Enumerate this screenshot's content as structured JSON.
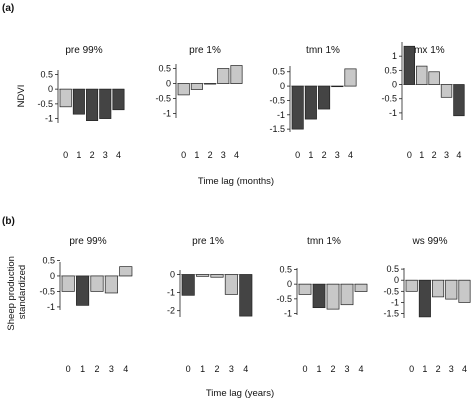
{
  "chart_data": [
    {
      "panel": "(a)",
      "type": "bar",
      "xlabel": "Time lag (months)",
      "ylabel": "NDVI",
      "charts": [
        {
          "title": "pre 99%",
          "categories": [
            "0",
            "1",
            "2",
            "3",
            "4"
          ],
          "ylim": [
            -1.15,
            0.65
          ],
          "yticks": [
            "0.5",
            "0",
            "-0.5",
            "-1"
          ],
          "ytick_values": [
            0.5,
            0,
            -0.5,
            -1
          ],
          "values": [
            -0.6,
            -0.85,
            -1.07,
            -1.0,
            -0.7
          ],
          "fills": [
            "#c8c8c8",
            "#444444",
            "#444444",
            "#444444",
            "#444444"
          ]
        },
        {
          "title": "pre 1%",
          "categories": [
            "0",
            "1",
            "2",
            "3",
            "4"
          ],
          "ylim": [
            -1.15,
            0.65
          ],
          "yticks": [
            "0.5",
            "0",
            "-0.5",
            "-1"
          ],
          "ytick_values": [
            0.5,
            0,
            -0.5,
            -1
          ],
          "values": [
            -0.38,
            -0.2,
            0.0,
            0.5,
            0.6
          ],
          "fills": [
            "#c8c8c8",
            "#c8c8c8",
            "#444444",
            "#c8c8c8",
            "#c8c8c8"
          ]
        },
        {
          "title": "tmn 1%",
          "categories": [
            "0",
            "1",
            "2",
            "3",
            "4"
          ],
          "ylim": [
            -1.6,
            0.7
          ],
          "yticks": [
            "0.5",
            "0",
            "-0.5",
            "-1",
            "-1.5"
          ],
          "ytick_values": [
            0.5,
            0,
            -0.5,
            -1,
            -1.5
          ],
          "values": [
            -1.5,
            -1.15,
            -0.8,
            0.0,
            0.6
          ],
          "fills": [
            "#444444",
            "#444444",
            "#444444",
            "#444444",
            "#c8c8c8"
          ]
        },
        {
          "title": "tmx 1%",
          "categories": [
            "0",
            "1",
            "2",
            "3",
            "4"
          ],
          "ylim": [
            -1.25,
            1.5
          ],
          "yticks": [
            "1",
            "0.5",
            "0",
            "-0.5",
            "-1"
          ],
          "ytick_values": [
            1,
            0.5,
            0,
            -0.5,
            -1
          ],
          "values": [
            1.35,
            0.65,
            0.45,
            -0.45,
            -1.1
          ],
          "fills": [
            "#444444",
            "#c8c8c8",
            "#c8c8c8",
            "#c8c8c8",
            "#444444"
          ]
        }
      ]
    },
    {
      "panel": "(b)",
      "type": "bar",
      "xlabel": "Time lag (years)",
      "ylabel": "Sheep production standardized",
      "charts": [
        {
          "title": "pre 99%",
          "categories": [
            "0",
            "1",
            "2",
            "3",
            "4"
          ],
          "ylim": [
            -1.1,
            0.45
          ],
          "yticks": [
            "0.5",
            "0",
            "-0.5",
            "-1"
          ],
          "ytick_values": [
            0.5,
            0,
            -0.5,
            -1
          ],
          "values": [
            -0.5,
            -0.95,
            -0.5,
            -0.55,
            0.3
          ],
          "fills": [
            "#c8c8c8",
            "#444444",
            "#c8c8c8",
            "#c8c8c8",
            "#c8c8c8"
          ]
        },
        {
          "title": "pre 1%",
          "categories": [
            "0",
            "1",
            "2",
            "3",
            "4"
          ],
          "ylim": [
            -2.35,
            0.25
          ],
          "yticks": [
            "0",
            "-1",
            "-2"
          ],
          "ytick_values": [
            0,
            -1,
            -2
          ],
          "values": [
            -1.15,
            -0.1,
            -0.15,
            -1.1,
            -2.3
          ],
          "fills": [
            "#444444",
            "#c8c8c8",
            "#c8c8c8",
            "#c8c8c8",
            "#444444"
          ]
        },
        {
          "title": "tmn 1%",
          "categories": [
            "0",
            "1",
            "2",
            "3",
            "4"
          ],
          "ylim": [
            -1.05,
            0.55
          ],
          "yticks": [
            "0.5",
            "0",
            "-0.5",
            "-1"
          ],
          "ytick_values": [
            0.5,
            0,
            -0.5,
            -1
          ],
          "values": [
            -0.35,
            -0.8,
            -0.85,
            -0.7,
            -0.25
          ],
          "fills": [
            "#c8c8c8",
            "#444444",
            "#c8c8c8",
            "#c8c8c8",
            "#c8c8c8"
          ]
        },
        {
          "title": "ws 99%",
          "categories": [
            "0",
            "1",
            "2",
            "3",
            "4"
          ],
          "ylim": [
            -1.7,
            0.55
          ],
          "yticks": [
            "0.5",
            "0",
            "-0.5",
            "-1",
            "-1.5"
          ],
          "ytick_values": [
            0.5,
            0,
            -0.5,
            -1,
            -1.5
          ],
          "values": [
            -0.5,
            -1.65,
            -0.75,
            -0.85,
            -1.0
          ],
          "fills": [
            "#c8c8c8",
            "#444444",
            "#c8c8c8",
            "#c8c8c8",
            "#c8c8c8"
          ]
        }
      ]
    }
  ]
}
